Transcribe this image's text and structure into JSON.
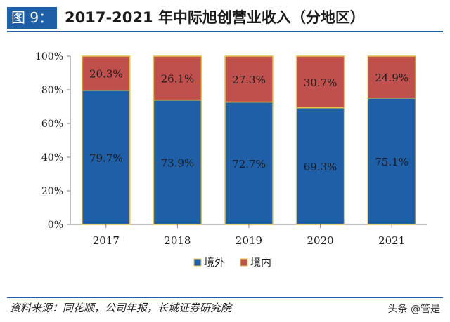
{
  "figure_label": "图 9：",
  "title": "2017-2021 年中际旭创营业收入（分地区）",
  "source": "资料来源：同花顺，公司年报，长城证券研究院",
  "watermark": "头条 @管是",
  "colors": {
    "domestic_overseas_bar": "#1f5fa8",
    "domestic_bar": "#c0504d",
    "bar_border": "#e8c24a",
    "header_bg": "#1f5fa8"
  },
  "chart_data": {
    "type": "bar",
    "stacked": true,
    "categories": [
      "2017",
      "2018",
      "2019",
      "2020",
      "2021"
    ],
    "series": [
      {
        "name": "境外",
        "values": [
          79.7,
          73.9,
          72.7,
          69.3,
          75.1
        ],
        "labels": [
          "79.7%",
          "73.9%",
          "72.7%",
          "69.3%",
          "75.1%"
        ]
      },
      {
        "name": "境内",
        "values": [
          20.3,
          26.1,
          27.3,
          30.7,
          24.9
        ],
        "labels": [
          "20.3%",
          "26.1%",
          "27.3%",
          "30.7%",
          "24.9%"
        ]
      }
    ],
    "y_ticks": [
      "0%",
      "20%",
      "40%",
      "60%",
      "80%",
      "100%"
    ],
    "ylim": [
      0,
      100
    ],
    "grid": false,
    "legend_position": "bottom"
  }
}
